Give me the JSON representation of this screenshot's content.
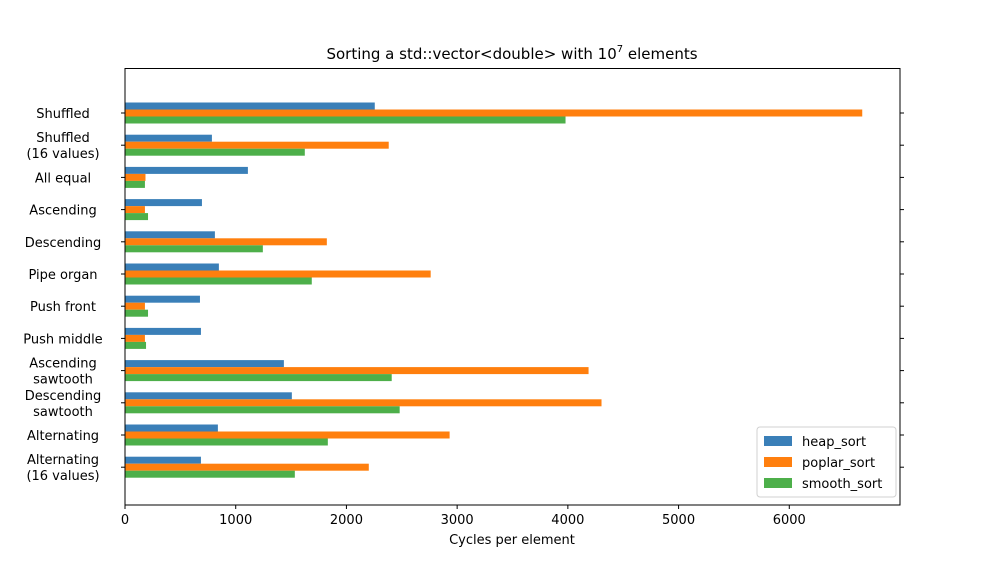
{
  "chart_data": {
    "type": "bar",
    "orientation": "horizontal",
    "title": "Sorting a std::vector<double> with 10",
    "title_superscript": "7",
    "title_suffix": " elements",
    "xlabel": "Cycles per element",
    "ylabel": "",
    "xlim": [
      0,
      7000
    ],
    "xticks": [
      0,
      1000,
      2000,
      3000,
      4000,
      5000,
      6000
    ],
    "grid": false,
    "legend_position": "bottom-right",
    "categories": [
      [
        "Shuffled"
      ],
      [
        "Shuffled",
        "(16 values)"
      ],
      [
        "All equal"
      ],
      [
        "Ascending"
      ],
      [
        "Descending"
      ],
      [
        "Pipe organ"
      ],
      [
        "Push front"
      ],
      [
        "Push middle"
      ],
      [
        "Ascending",
        "sawtooth"
      ],
      [
        "Descending",
        "sawtooth"
      ],
      [
        "Alternating"
      ],
      [
        "Alternating",
        "(16 values)"
      ]
    ],
    "series": [
      {
        "name": "heap_sort",
        "color": "#3a7fb8",
        "values": [
          2256,
          785,
          1110,
          695,
          812,
          848,
          677,
          686,
          1435,
          1507,
          839,
          686
        ]
      },
      {
        "name": "poplar_sort",
        "color": "#ff7f0e",
        "values": [
          6659,
          2382,
          185,
          180,
          1823,
          2761,
          180,
          180,
          4187,
          4304,
          2932,
          2202
        ]
      },
      {
        "name": "smooth_sort",
        "color": "#4daf4a",
        "values": [
          3979,
          1624,
          180,
          208,
          1245,
          1687,
          208,
          190,
          2409,
          2481,
          1832,
          1534
        ]
      }
    ]
  }
}
